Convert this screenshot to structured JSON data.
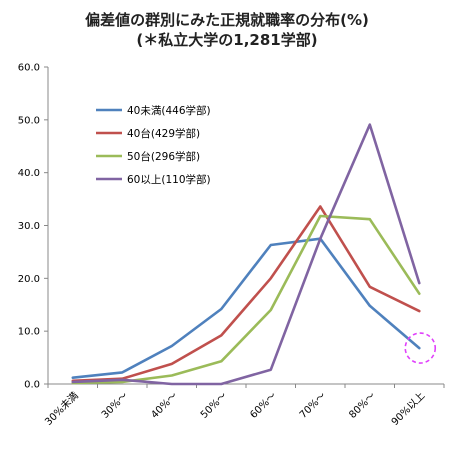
{
  "chart_data": {
    "type": "line",
    "title": "偏差値の群別にみた正規就職率の分布(%)",
    "subtitle": "(＊私立大学の1,281学部)",
    "categories": [
      "30%未満",
      "30%～",
      "40%～",
      "50%～",
      "60%～",
      "70%～",
      "80%～",
      "90%以上"
    ],
    "ylim": [
      0,
      60
    ],
    "yticks": [
      "0.0",
      "10.0",
      "20.0",
      "30.0",
      "40.0",
      "50.0",
      "60.0"
    ],
    "grid": false,
    "legend_position": "top-left",
    "series": [
      {
        "name": "40未満(446学部)",
        "color": "#4f81bd",
        "values": [
          1.2,
          2.2,
          7.2,
          14.2,
          26.3,
          27.5,
          14.8,
          6.8
        ]
      },
      {
        "name": "40台(429学部)",
        "color": "#c0504d",
        "values": [
          0.6,
          1.0,
          3.8,
          9.2,
          20.0,
          33.6,
          18.4,
          13.8
        ]
      },
      {
        "name": "50台(296学部)",
        "color": "#9bbb59",
        "values": [
          0.2,
          0.4,
          1.6,
          4.3,
          14.0,
          31.8,
          31.2,
          17.1
        ]
      },
      {
        "name": "60以上(110学部)",
        "color": "#8064a2",
        "values": [
          0.4,
          0.8,
          0.0,
          0.0,
          2.7,
          27.5,
          49.1,
          19.1
        ]
      }
    ],
    "annotation": {
      "type": "dashed-circle",
      "color": "#e040fb",
      "category": "90%以上",
      "value": 6.8
    }
  }
}
